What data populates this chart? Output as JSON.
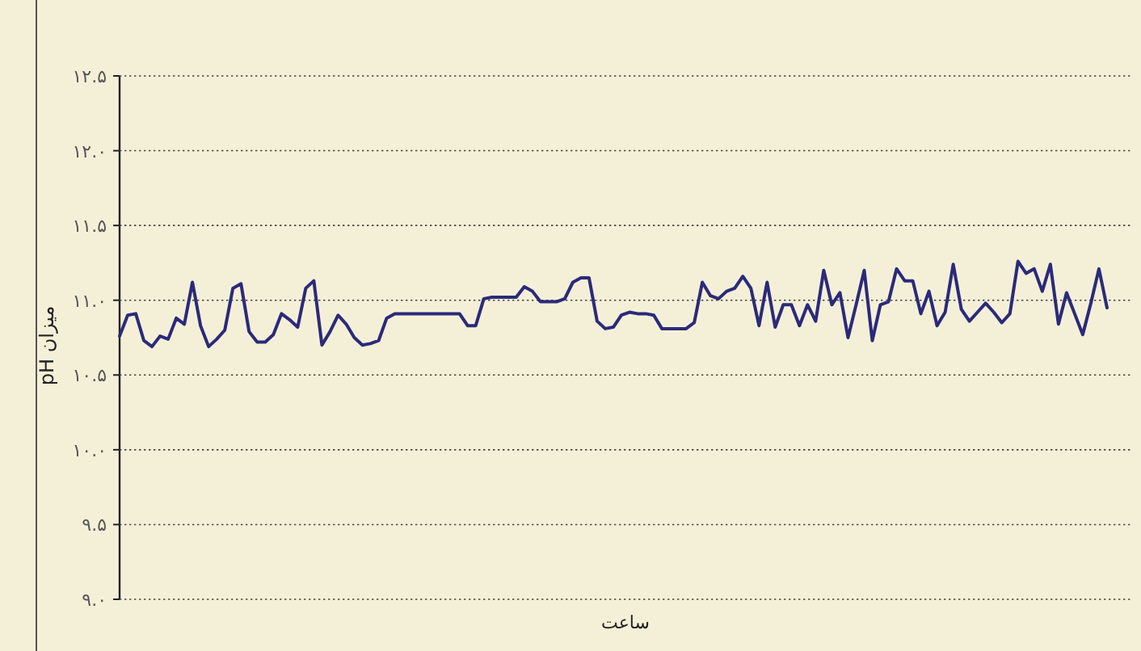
{
  "chart_data": {
    "type": "line",
    "xlabel": "ساعت",
    "ylabel": "میزان pH",
    "categories": [
      null,
      null,
      null,
      null,
      null,
      null,
      null,
      null,
      null,
      null,
      null,
      null,
      null,
      null,
      null,
      null,
      null,
      null,
      null,
      null,
      null,
      null,
      null,
      null,
      null,
      null,
      null,
      null,
      null,
      null,
      null,
      null,
      null,
      null,
      null,
      null,
      null,
      null,
      null,
      null,
      null,
      null,
      null,
      null,
      null,
      null,
      null,
      null,
      null,
      null,
      null,
      null,
      null,
      null,
      null,
      null,
      null,
      null,
      null,
      null,
      null,
      null,
      null,
      null,
      null,
      null,
      null,
      null,
      null,
      null,
      null,
      null,
      null,
      null,
      null,
      null,
      null,
      null,
      null,
      null,
      null,
      null,
      null,
      null,
      null,
      null,
      null,
      null,
      null,
      null,
      null,
      null,
      null,
      null,
      null,
      null,
      null,
      null,
      null,
      null,
      null,
      null,
      null,
      null,
      null,
      null,
      null,
      null,
      null,
      null,
      null,
      null,
      null,
      null,
      null,
      null,
      null,
      null,
      null,
      null,
      null,
      null,
      null,
      null,
      null,
      null
    ],
    "series": [
      {
        "color": "#2b2a7a",
        "values": [
          10.76,
          10.9,
          10.91,
          10.73,
          10.69,
          10.76,
          10.74,
          10.88,
          10.84,
          11.12,
          10.83,
          10.69,
          10.74,
          10.8,
          11.08,
          11.11,
          10.79,
          10.72,
          10.72,
          10.77,
          10.91,
          10.87,
          10.82,
          11.08,
          11.13,
          10.7,
          10.79,
          10.9,
          10.84,
          10.75,
          10.7,
          10.71,
          10.73,
          10.88,
          10.91,
          10.91,
          10.91,
          10.91,
          10.91,
          10.91,
          10.91,
          10.91,
          10.91,
          10.83,
          10.83,
          11.01,
          11.02,
          11.02,
          11.02,
          11.02,
          11.09,
          11.06,
          10.99,
          10.99,
          10.99,
          11.01,
          11.12,
          11.15,
          11.15,
          10.86,
          10.81,
          10.82,
          10.9,
          10.92,
          10.91,
          10.91,
          10.9,
          10.81,
          10.81,
          10.81,
          10.81,
          10.85,
          11.12,
          11.03,
          11.01,
          11.06,
          11.08,
          11.16,
          11.08,
          10.83,
          11.12,
          10.82,
          10.97,
          10.97,
          10.83,
          10.97,
          10.86,
          11.2,
          10.97,
          11.05,
          10.75,
          10.97,
          11.2,
          10.73,
          10.97,
          10.99,
          11.21,
          11.13,
          11.13,
          10.91,
          11.06,
          10.83,
          10.92,
          11.24,
          10.94,
          10.86,
          10.92,
          10.98,
          10.92,
          10.85,
          10.91,
          11.26,
          11.18,
          11.21,
          11.06,
          11.24,
          10.84,
          11.05,
          10.91,
          10.77,
          10.98,
          11.21,
          10.95,
          null,
          null,
          null
        ]
      }
    ],
    "ylim": [
      9.0,
      12.5
    ],
    "yticks": [
      {
        "value": 9.0,
        "label": "۹.۰"
      },
      {
        "value": 9.5,
        "label": "۹.۵"
      },
      {
        "value": 10.0,
        "label": "۱۰.۰"
      },
      {
        "value": 10.5,
        "label": "۱۰.۵"
      },
      {
        "value": 11.0,
        "label": "۱۱.۰"
      },
      {
        "value": 11.5,
        "label": "۱۱.۵"
      },
      {
        "value": 12.0,
        "label": "۱۲.۰"
      },
      {
        "value": 12.5,
        "label": "۱۲.۵"
      }
    ],
    "grid": "y"
  }
}
